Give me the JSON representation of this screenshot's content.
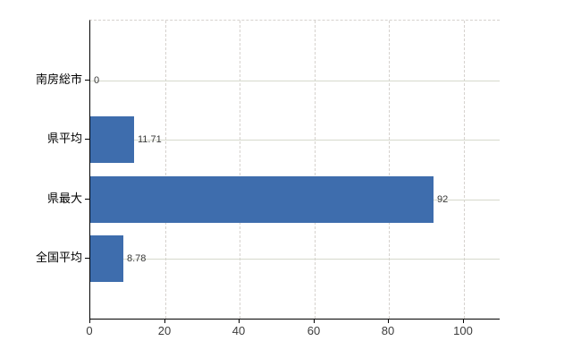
{
  "chart_data": {
    "type": "bar",
    "orientation": "horizontal",
    "title": "",
    "xlabel": "",
    "ylabel": "",
    "categories": [
      "南房総市",
      "県平均",
      "県最大",
      "全国平均"
    ],
    "values": [
      0,
      11.71,
      92,
      8.78
    ],
    "value_labels": [
      "0",
      "11.71",
      "92",
      "8.78"
    ],
    "x_ticks": [
      0,
      20,
      40,
      60,
      80,
      100
    ],
    "x_tick_labels": [
      "0",
      "20",
      "40",
      "60",
      "80",
      "100"
    ],
    "xlim": [
      0,
      109.7
    ],
    "grid": true,
    "legend": false,
    "colors": {
      "bar": "#3e6dad",
      "axis": "#000000",
      "horizontal_grid": "#d6d9cc",
      "vertical_grid": "#d6d2ce",
      "category_text": "#000000",
      "tick_text": "#3c3c3c",
      "value_text": "#3a3a3a",
      "background": "#ffffff"
    }
  }
}
